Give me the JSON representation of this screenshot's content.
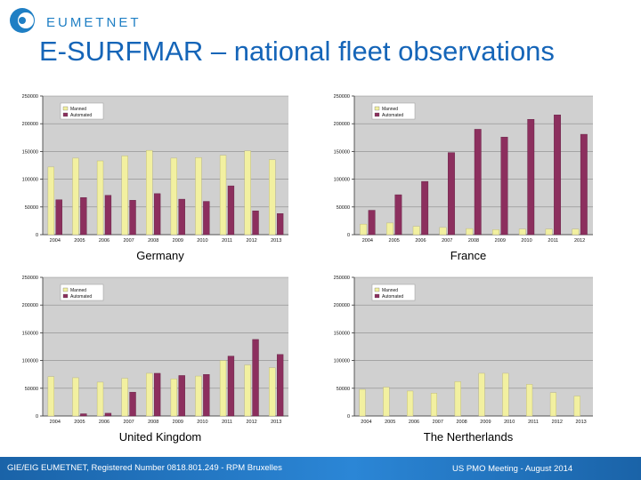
{
  "header": {
    "logo_text": "EUMETNET",
    "title": "E-SURFMAR – national fleet observations"
  },
  "footer": {
    "left_text": "GIE/EIG EUMETNET, Registered Number 0818.801.249 - RPM Bruxelles",
    "right_text": "US PMO  Meeting -  August 2014"
  },
  "colors": {
    "manned": "#f2f0a0",
    "automated": "#8c2f5e",
    "plot_background": "#d0d0d0",
    "title_blue": "#1565b8",
    "footer_blue": "#1f6fb8"
  },
  "chart_data": [
    {
      "type": "bar",
      "caption": "Germany",
      "categories": [
        "2004",
        "2005",
        "2006",
        "2007",
        "2008",
        "2009",
        "2010",
        "2011",
        "2012",
        "2013"
      ],
      "series": [
        {
          "name": "Manned",
          "values": [
            122000,
            138000,
            133000,
            142000,
            152000,
            138000,
            139000,
            143000,
            151000,
            135000
          ]
        },
        {
          "name": "Automated",
          "values": [
            63000,
            67000,
            71000,
            62000,
            74000,
            64000,
            60000,
            88000,
            43000,
            38000
          ]
        }
      ],
      "yticks": [
        "0",
        "50000",
        "100000",
        "150000",
        "200000",
        "250000"
      ],
      "ylim": [
        0,
        250000
      ],
      "legend": "top-left"
    },
    {
      "type": "bar",
      "caption": "France",
      "categories": [
        "2004",
        "2005",
        "2006",
        "2007",
        "2008",
        "2009",
        "2010",
        "2011",
        "2012"
      ],
      "series": [
        {
          "name": "Manned",
          "values": [
            19000,
            21000,
            15000,
            13000,
            11000,
            9000,
            10000,
            10000,
            10000
          ]
        },
        {
          "name": "Automated",
          "values": [
            44000,
            72000,
            96000,
            148000,
            190000,
            176000,
            208000,
            216000,
            181000
          ]
        }
      ],
      "yticks": [
        "0",
        "50000",
        "100000",
        "150000",
        "200000",
        "250000"
      ],
      "ylim": [
        0,
        250000
      ],
      "legend": "top-left"
    },
    {
      "type": "bar",
      "caption": "United Kingdom",
      "categories": [
        "2004",
        "2005",
        "2006",
        "2007",
        "2008",
        "2009",
        "2010",
        "2011",
        "2012",
        "2013"
      ],
      "series": [
        {
          "name": "Manned",
          "values": [
            71000,
            69000,
            61000,
            68000,
            77000,
            67000,
            72000,
            100000,
            92000,
            87000
          ]
        },
        {
          "name": "Automated",
          "values": [
            0,
            4000,
            5000,
            43000,
            77000,
            73000,
            75000,
            108000,
            138000,
            111000
          ]
        }
      ],
      "yticks": [
        "0",
        "50000",
        "100000",
        "150000",
        "200000",
        "250000"
      ],
      "ylim": [
        0,
        250000
      ],
      "legend": "top-left"
    },
    {
      "type": "bar",
      "caption": "The Nertherlands",
      "categories": [
        "2004",
        "2005",
        "2006",
        "2007",
        "2008",
        "2009",
        "2010",
        "2011",
        "2012",
        "2013"
      ],
      "series": [
        {
          "name": "Manned",
          "values": [
            48000,
            52000,
            45000,
            41000,
            62000,
            77000,
            77000,
            57000,
            42000,
            36000
          ]
        },
        {
          "name": "Automated",
          "values": [
            0,
            0,
            0,
            0,
            0,
            0,
            0,
            0,
            0,
            0
          ]
        }
      ],
      "yticks": [
        "0",
        "50000",
        "100000",
        "150000",
        "200000",
        "250000"
      ],
      "ylim": [
        0,
        250000
      ],
      "legend": "top-left"
    }
  ]
}
